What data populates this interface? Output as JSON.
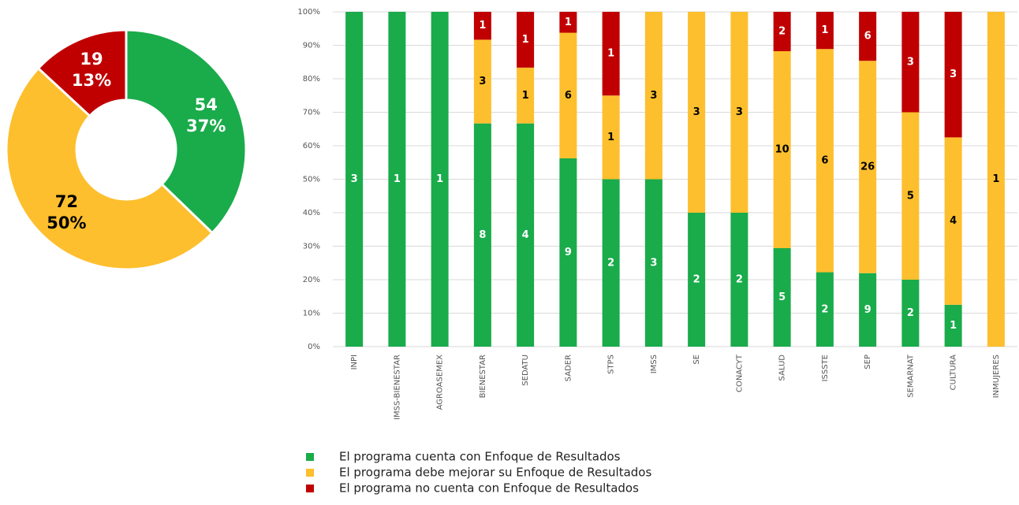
{
  "chart_data": [
    {
      "type": "donut",
      "values": [
        54,
        72,
        19
      ],
      "percent_labels": [
        "37%",
        "50%",
        "13%"
      ],
      "colors": [
        "#1aab4b",
        "#fdbf2d",
        "#c00000"
      ],
      "label_colors": [
        "#ffffff",
        "#000000",
        "#ffffff"
      ]
    },
    {
      "type": "bar",
      "stacking": "percent",
      "categories": [
        "INPI",
        "IMSS-BIENESTAR",
        "AGROASEMEX",
        "BIENESTAR",
        "SEDATU",
        "SADER",
        "STPS",
        "IMSS",
        "SE",
        "CONACYT",
        "SALUD",
        "ISSSTE",
        "SEP",
        "SEMARNAT",
        "CULTURA",
        "INMUJERES"
      ],
      "series": [
        {
          "name": "El programa cuenta con Enfoque de Resultados",
          "color": "#1aab4b",
          "label_color": "#ffffff",
          "values": [
            3,
            1,
            1,
            8,
            4,
            9,
            2,
            3,
            2,
            2,
            5,
            2,
            9,
            2,
            1,
            0
          ]
        },
        {
          "name": "El programa debe mejorar su Enfoque de Resultados",
          "color": "#fdbf2d",
          "label_color": "#000000",
          "values": [
            0,
            0,
            0,
            3,
            1,
            6,
            1,
            3,
            3,
            3,
            10,
            6,
            26,
            5,
            4,
            1
          ]
        },
        {
          "name": "El programa no cuenta con Enfoque de Resultados",
          "color": "#c00000",
          "label_color": "#ffffff",
          "values": [
            0,
            0,
            0,
            1,
            1,
            1,
            1,
            0,
            0,
            0,
            2,
            1,
            6,
            3,
            3,
            0
          ]
        }
      ],
      "ylim": [
        0,
        100
      ],
      "yticks": [
        {
          "value": 0,
          "label": "0%"
        },
        {
          "value": 10,
          "label": "10%"
        },
        {
          "value": 20,
          "label": "20%"
        },
        {
          "value": 30,
          "label": "30%"
        },
        {
          "value": 40,
          "label": "40%"
        },
        {
          "value": 50,
          "label": "50%"
        },
        {
          "value": 60,
          "label": "60%"
        },
        {
          "value": 70,
          "label": "70%"
        },
        {
          "value": 80,
          "label": "80%"
        },
        {
          "value": 90,
          "label": "90%"
        },
        {
          "value": 100,
          "label": "100%"
        }
      ],
      "grid": true
    }
  ]
}
